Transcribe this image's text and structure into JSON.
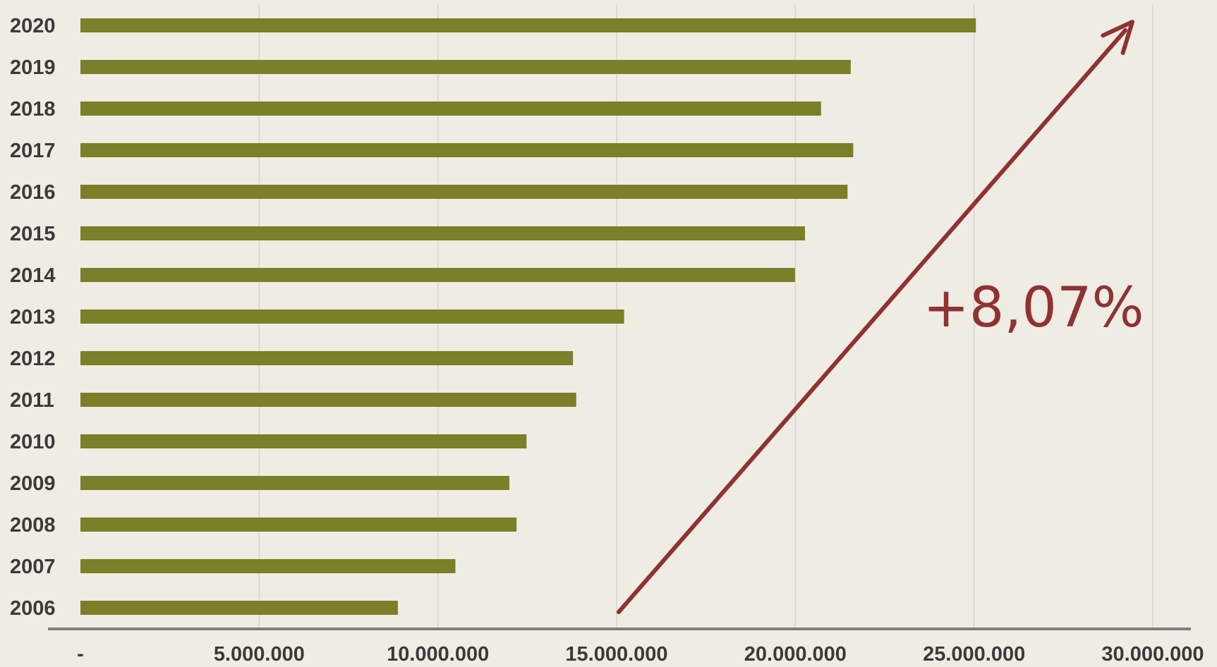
{
  "colors": {
    "background": "#efece4",
    "bar": "#7a7f28",
    "grid": "#d6d3cc",
    "axis": "#7f7f7f",
    "label": "#3a3a3a",
    "arrow": "#8f3232"
  },
  "chart_data": {
    "type": "bar",
    "orientation": "horizontal",
    "categories": [
      "2020",
      "2019",
      "2018",
      "2017",
      "2016",
      "2015",
      "2014",
      "2013",
      "2012",
      "2011",
      "2010",
      "2009",
      "2008",
      "2007",
      "2006"
    ],
    "values": [
      25050000,
      21550000,
      20720000,
      21620000,
      21460000,
      20270000,
      19990000,
      15210000,
      13780000,
      13870000,
      12480000,
      12000000,
      12200000,
      10490000,
      8880000
    ],
    "xlim": [
      0,
      30000000
    ],
    "xticks": [
      0,
      5000000,
      10000000,
      15000000,
      20000000,
      25000000,
      30000000
    ],
    "xtick_labels": [
      "-",
      "5.000.000",
      "10.000.000",
      "15.000.000",
      "20.000.000",
      "25.000.000",
      "30.000.000"
    ],
    "title": "",
    "xlabel": "",
    "ylabel": "",
    "grid": "vertical",
    "legend": "none",
    "annotation": {
      "text": "+8,07%",
      "arrow": "upward trend arrow"
    }
  }
}
